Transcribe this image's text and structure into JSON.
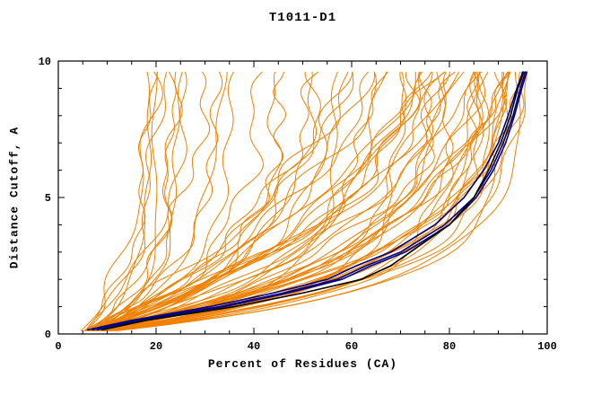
{
  "chart_data": {
    "type": "line",
    "title": "T1011-D1",
    "xlabel": "Percent of Residues (CA)",
    "ylabel": "Distance Cutoff, A",
    "xlim": [
      0,
      100
    ],
    "ylim": [
      0,
      10
    ],
    "x_major_ticks": [
      0,
      20,
      40,
      60,
      80,
      100
    ],
    "x_minor_step": 5,
    "y_major_ticks": [
      0,
      5,
      10
    ],
    "y_minor_step": 1,
    "grid": false,
    "legend": "none",
    "colors": {
      "model_curves": "#f08000",
      "best_model_group": "#000080",
      "highlight_curve": "#000000",
      "frame": "#000000",
      "background": "#ffffff"
    },
    "description": "GDT-style plot: distance cutoff (A) vs percent of CA residues under cutoff; many orange server model curves, dark navy/black best-model curves ending near 95% at 9.6A",
    "dark_cutoffs": [
      0.15,
      0.5,
      1,
      1.5,
      2,
      2.5,
      3,
      4,
      5,
      6,
      7,
      8,
      9,
      9.6
    ],
    "dark_models": [
      {
        "color": "#000080",
        "percents": [
          7,
          16,
          33,
          46,
          57,
          63,
          70,
          79,
          85,
          88.5,
          91,
          93,
          94.5,
          95.5
        ]
      },
      {
        "color": "#000080",
        "percents": [
          6,
          15,
          31,
          44,
          55,
          61,
          68,
          77,
          83,
          87,
          90,
          92,
          93.8,
          95
        ]
      },
      {
        "color": "#000080",
        "percents": [
          8,
          17,
          34,
          47,
          58,
          64,
          71,
          80,
          85.5,
          89,
          91.5,
          93.3,
          94.8,
          95.8
        ]
      },
      {
        "color": "#000000",
        "percents": [
          9,
          18,
          36,
          50,
          62,
          68,
          72,
          80,
          85,
          88,
          90.5,
          92.5,
          94,
          95.2
        ]
      }
    ],
    "orange_fields": [
      "x_start",
      "x_max",
      "tau",
      "wiggle_amp",
      "seed"
    ],
    "orange_models": [
      [
        5,
        19,
        2.6,
        1.5,
        1
      ],
      [
        4,
        22,
        3.0,
        2.0,
        2
      ],
      [
        6,
        24,
        2.2,
        1.8,
        3
      ],
      [
        5,
        27,
        3.4,
        2.2,
        4
      ],
      [
        4,
        30,
        2.8,
        2.5,
        5
      ],
      [
        6,
        33,
        2.0,
        1.6,
        6
      ],
      [
        5,
        36,
        3.2,
        2.4,
        7
      ],
      [
        4,
        25,
        1.6,
        1.2,
        8
      ],
      [
        5,
        21,
        4.0,
        2.0,
        9
      ],
      [
        6,
        38,
        2.6,
        2.2,
        10
      ],
      [
        5,
        42,
        2.4,
        2.5,
        11
      ],
      [
        4,
        45,
        1.8,
        2.0,
        12
      ],
      [
        6,
        48,
        3.0,
        3.0,
        13
      ],
      [
        5,
        52,
        2.2,
        2.2,
        14
      ],
      [
        4,
        55,
        2.8,
        2.6,
        15
      ],
      [
        6,
        58,
        1.6,
        1.8,
        16
      ],
      [
        5,
        61,
        3.2,
        2.8,
        17
      ],
      [
        4,
        64,
        2.0,
        2.0,
        18
      ],
      [
        6,
        67,
        2.6,
        2.4,
        19
      ],
      [
        5,
        70,
        1.4,
        1.6,
        20
      ],
      [
        4,
        72,
        3.0,
        3.0,
        21
      ],
      [
        6,
        74,
        2.2,
        2.0,
        22
      ],
      [
        5,
        66,
        3.6,
        3.2,
        23
      ],
      [
        4,
        59,
        4.2,
        2.6,
        24
      ],
      [
        5,
        76,
        1.8,
        2.0,
        25
      ],
      [
        4,
        78,
        2.4,
        2.4,
        26
      ],
      [
        6,
        80,
        1.5,
        1.5,
        27
      ],
      [
        5,
        82,
        2.8,
        2.6,
        28
      ],
      [
        4,
        84,
        2.0,
        2.0,
        29
      ],
      [
        6,
        85,
        3.2,
        2.8,
        30
      ],
      [
        5,
        86,
        1.6,
        1.8,
        31
      ],
      [
        4,
        87,
        2.6,
        2.2,
        32
      ],
      [
        6,
        88,
        2.1,
        1.6,
        33
      ],
      [
        5,
        89,
        3.0,
        2.6,
        34
      ],
      [
        4,
        90,
        1.8,
        1.4,
        35
      ],
      [
        6,
        90,
        2.4,
        2.0,
        36
      ],
      [
        5,
        91,
        2.9,
        2.4,
        37
      ],
      [
        4,
        91,
        1.5,
        1.2,
        38
      ],
      [
        6,
        92,
        2.2,
        1.8,
        39
      ],
      [
        5,
        92,
        3.3,
        2.6,
        40
      ],
      [
        4,
        93,
        1.9,
        1.4,
        41
      ],
      [
        6,
        93,
        2.7,
        2.0,
        42
      ],
      [
        5,
        94,
        2.3,
        1.6,
        43
      ],
      [
        4,
        94,
        3.1,
        2.2,
        44
      ],
      [
        6,
        95,
        1.7,
        1.2,
        45
      ],
      [
        5,
        95,
        2.5,
        1.8,
        46
      ],
      [
        4,
        96,
        2.9,
        2.0,
        47
      ],
      [
        6,
        96,
        2.0,
        1.4,
        48
      ],
      [
        5,
        97,
        2.6,
        1.8,
        49
      ],
      [
        4,
        97,
        3.4,
        2.4,
        50
      ],
      [
        6,
        88,
        4.0,
        3.0,
        51
      ],
      [
        5,
        86,
        4.5,
        3.2,
        52
      ],
      [
        4,
        90,
        5.0,
        2.5,
        53
      ],
      [
        6,
        92,
        5.5,
        2.8,
        54
      ],
      [
        5,
        94,
        6.0,
        2.2,
        55
      ],
      [
        4,
        96,
        5.2,
        2.0,
        56
      ],
      [
        6,
        85,
        6.5,
        3.0,
        57
      ],
      [
        5,
        80,
        5.8,
        2.6,
        58
      ],
      [
        4,
        75,
        6.2,
        2.8,
        59
      ],
      [
        6,
        70,
        5.4,
        2.4,
        60
      ],
      [
        5,
        97,
        4.6,
        2.0,
        61
      ],
      [
        4,
        93,
        4.8,
        2.4,
        62
      ],
      [
        6,
        87,
        5.6,
        2.6,
        63
      ],
      [
        5,
        82,
        4.4,
        2.2,
        64
      ],
      [
        5,
        18,
        1.2,
        1.0,
        65
      ],
      [
        4,
        20,
        1.0,
        0.8,
        66
      ],
      [
        6,
        23,
        1.3,
        1.2,
        67
      ]
    ]
  }
}
